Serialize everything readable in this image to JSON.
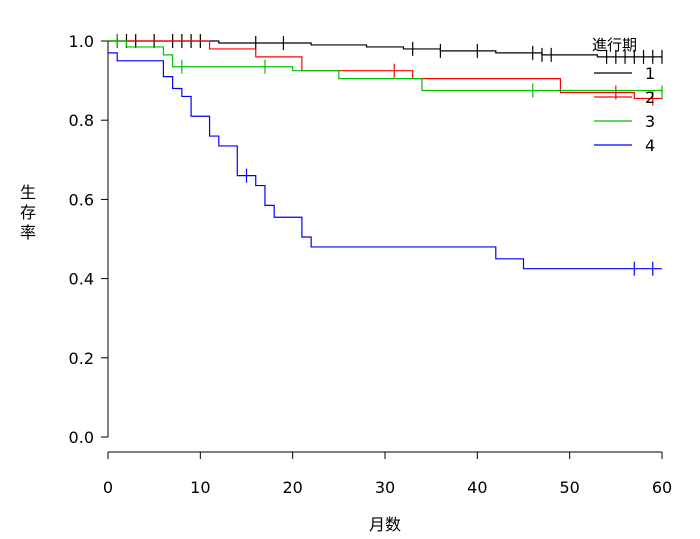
{
  "chart_data": {
    "type": "line",
    "title": "",
    "xlabel": "月数",
    "ylabel": "生存率",
    "xlim": [
      0,
      60
    ],
    "ylim": [
      0,
      1
    ],
    "x_ticks": [
      "0",
      "10",
      "20",
      "30",
      "40",
      "50",
      "60"
    ],
    "y_ticks": [
      "0.0",
      "0.2",
      "0.4",
      "0.6",
      "0.8",
      "1.0"
    ],
    "grid": false,
    "legend_title": "進行期",
    "legend_position": "top-right",
    "series": [
      {
        "name": "1",
        "color": "#000000",
        "steps": [
          [
            0,
            1.0
          ],
          [
            12,
            0.995
          ],
          [
            22,
            0.99
          ],
          [
            28,
            0.985
          ],
          [
            32,
            0.98
          ],
          [
            36,
            0.975
          ],
          [
            42,
            0.97
          ],
          [
            47,
            0.965
          ],
          [
            53,
            0.96
          ],
          [
            60,
            0.96
          ]
        ],
        "censored": [
          1,
          2,
          3,
          5,
          7,
          8,
          9,
          10,
          16,
          19,
          33,
          36,
          40,
          46,
          47,
          48,
          54,
          55,
          56,
          57,
          58,
          59,
          60
        ]
      },
      {
        "name": "2",
        "color": "#ff0000",
        "steps": [
          [
            0,
            1.0
          ],
          [
            11,
            0.98
          ],
          [
            16,
            0.96
          ],
          [
            21,
            0.925
          ],
          [
            33,
            0.905
          ],
          [
            49,
            0.87
          ],
          [
            57,
            0.855
          ],
          [
            60,
            0.855
          ]
        ],
        "censored": [
          31,
          55,
          59
        ]
      },
      {
        "name": "3",
        "color": "#00c000",
        "steps": [
          [
            0,
            1.0
          ],
          [
            2,
            0.985
          ],
          [
            6,
            0.965
          ],
          [
            7,
            0.935
          ],
          [
            20,
            0.925
          ],
          [
            25,
            0.905
          ],
          [
            34,
            0.875
          ],
          [
            60,
            0.87
          ]
        ],
        "censored": [
          1,
          8,
          17,
          46,
          60
        ]
      },
      {
        "name": "4",
        "color": "#0000ff",
        "steps": [
          [
            0,
            0.97
          ],
          [
            1,
            0.95
          ],
          [
            6,
            0.91
          ],
          [
            7,
            0.88
          ],
          [
            8,
            0.86
          ],
          [
            9,
            0.81
          ],
          [
            11,
            0.76
          ],
          [
            12,
            0.735
          ],
          [
            14,
            0.66
          ],
          [
            16,
            0.635
          ],
          [
            17,
            0.585
          ],
          [
            18,
            0.555
          ],
          [
            21,
            0.505
          ],
          [
            22,
            0.48
          ],
          [
            42,
            0.45
          ],
          [
            45,
            0.425
          ],
          [
            60,
            0.425
          ]
        ],
        "censored": [
          15,
          57,
          59
        ]
      }
    ]
  }
}
